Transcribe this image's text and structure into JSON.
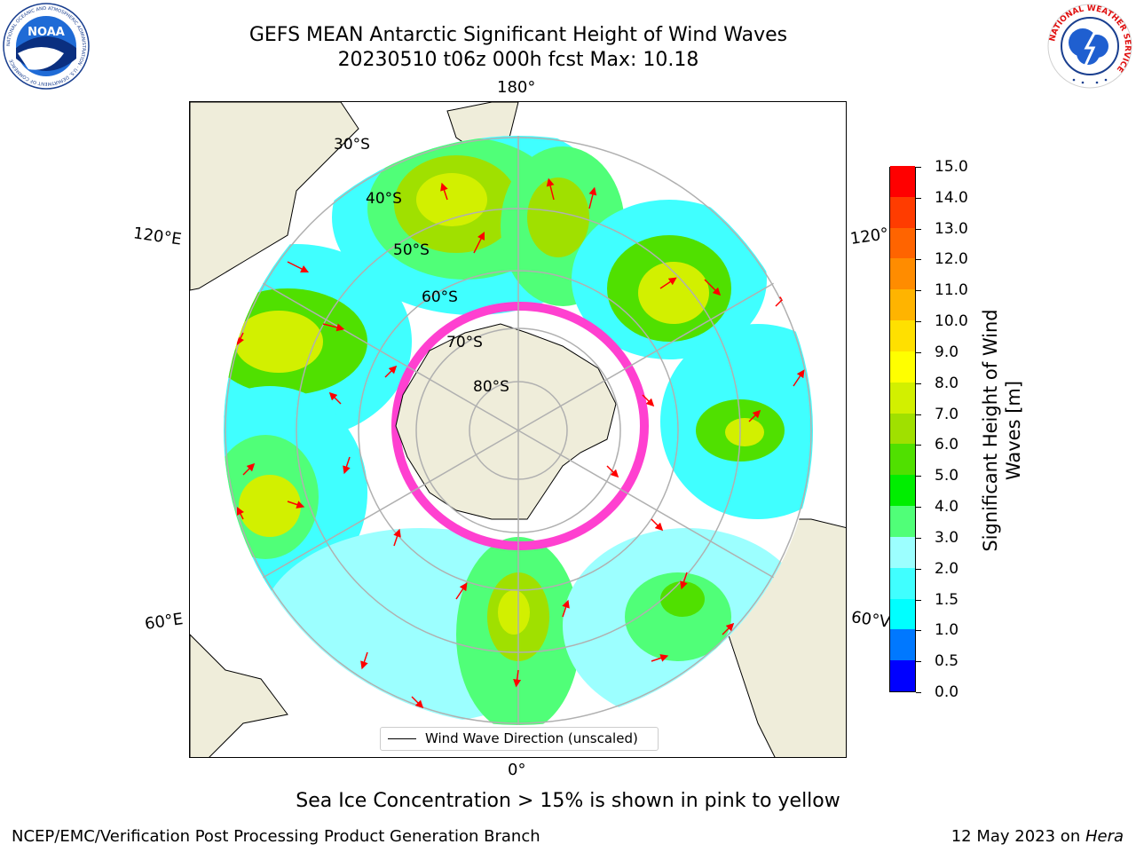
{
  "header": {
    "title_line1": "GEFS MEAN Antarctic Significant Height of Wind Waves",
    "title_line2": "20230510 t06z 000h fcst   Max: 10.18",
    "noaa_logo_text": "NOAA",
    "noaa_ring_text": "NATIONAL OCEANIC AND ATMOSPHERIC ADMINISTRATION · U.S. DEPARTMENT OF COMMERCE",
    "nws_ring_text": "NATIONAL WEATHER SERVICE"
  },
  "map": {
    "projection": "south-polar-stereographic",
    "longitude_labels": {
      "top": "180°",
      "bottom": "0°",
      "upper_left": "120°E",
      "upper_right": "120°",
      "lower_left": "60°E",
      "lower_right": "60°V"
    },
    "latitude_labels": [
      "30°S",
      "40°S",
      "50°S",
      "60°S",
      "70°S",
      "80°S"
    ],
    "legend_label": "Wind Wave Direction (unscaled)",
    "colors": {
      "land": "#efedda",
      "grid": "#b0b0b0",
      "arrow": "#ff0000",
      "sea_ice": "#ff40d0"
    }
  },
  "colorbar": {
    "title_line1": "Significant Height of Wind",
    "title_line2": "Waves [m]",
    "tick_labels": [
      "0.0",
      "0.5",
      "1.0",
      "1.5",
      "2.0",
      "3.0",
      "4.0",
      "5.0",
      "6.0",
      "7.0",
      "8.0",
      "9.0",
      "10.0",
      "11.0",
      "12.0",
      "13.0",
      "14.0",
      "15.0"
    ],
    "colors": [
      "#0000ff",
      "#0078ff",
      "#00ffff",
      "#40ffff",
      "#9cffff",
      "#50ff78",
      "#00ee00",
      "#50e000",
      "#a0e000",
      "#d2f000",
      "#ffff00",
      "#ffe000",
      "#ffb400",
      "#ff8c00",
      "#ff6400",
      "#ff3c00",
      "#ff0000"
    ]
  },
  "caption": "Sea Ice Concentration > 15% is shown in pink to yellow",
  "footer": {
    "left": "NCEP/EMC/Verification Post Processing Product Generation Branch",
    "right_prefix": "12 May 2023 on ",
    "right_italic": "Hera"
  }
}
